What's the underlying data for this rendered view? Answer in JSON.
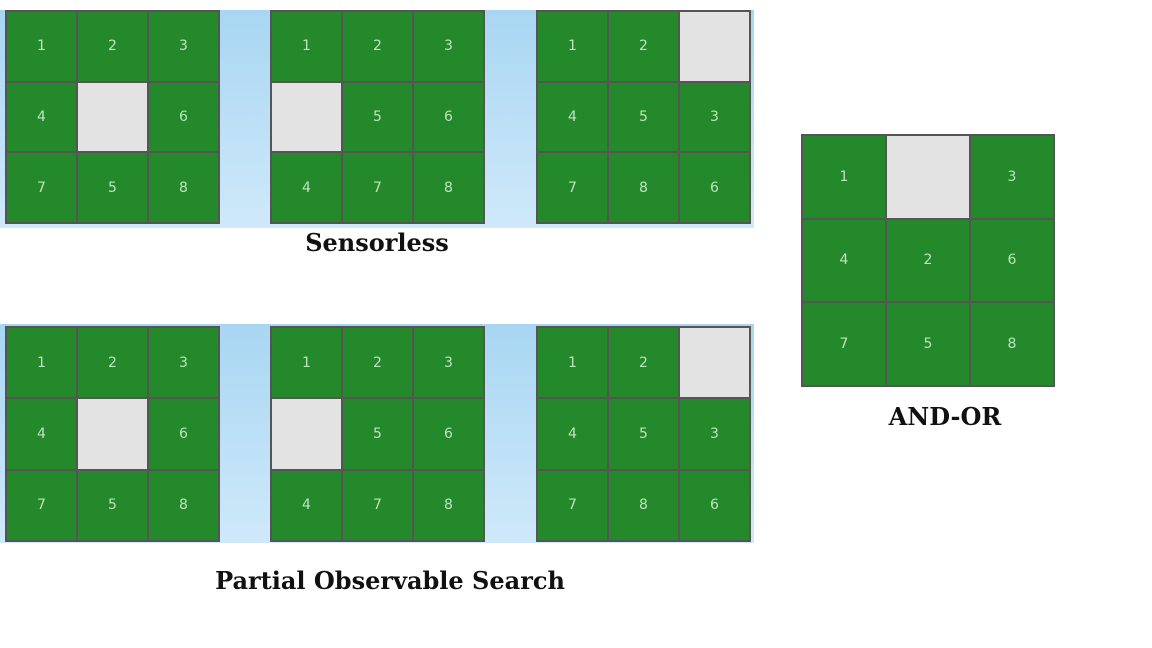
{
  "sensorless": {
    "caption": "Sensorless",
    "boards": [
      [
        "1",
        "2",
        "3",
        "4",
        "",
        "6",
        "7",
        "5",
        "8"
      ],
      [
        "1",
        "2",
        "3",
        "",
        "5",
        "6",
        "4",
        "7",
        "8"
      ],
      [
        "1",
        "2",
        "",
        "4",
        "5",
        "3",
        "7",
        "8",
        "6"
      ]
    ]
  },
  "partial_observable": {
    "caption": "Partial Observable Search",
    "boards": [
      [
        "1",
        "2",
        "3",
        "4",
        "",
        "6",
        "7",
        "5",
        "8"
      ],
      [
        "1",
        "2",
        "3",
        "",
        "5",
        "6",
        "4",
        "7",
        "8"
      ],
      [
        "1",
        "2",
        "",
        "4",
        "5",
        "3",
        "7",
        "8",
        "6"
      ]
    ]
  },
  "and_or": {
    "caption": "AND-OR",
    "board": [
      "1",
      "",
      "3",
      "4",
      "2",
      "6",
      "7",
      "5",
      "8"
    ]
  },
  "colors": {
    "tile_green": "#23892a",
    "blank_tile": "#e3e3e3",
    "background_strip": "#a8d6f2"
  }
}
